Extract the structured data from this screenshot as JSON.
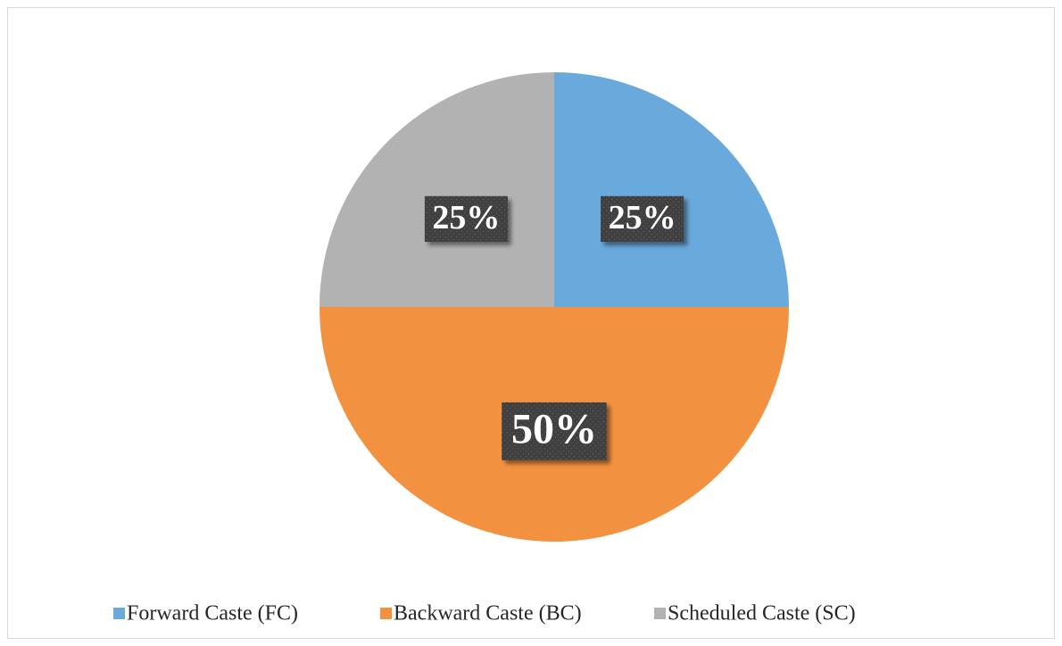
{
  "chart_data": {
    "type": "pie",
    "categories": [
      "Forward Caste (FC)",
      "Backward Caste (BC)",
      "Scheduled Caste (SC)"
    ],
    "values": [
      25,
      50,
      25
    ],
    "value_labels": [
      "25%",
      "50%",
      "25%"
    ],
    "colors": [
      "#6aa9dc",
      "#f29240",
      "#b2b2b2"
    ],
    "legend": "bottom"
  }
}
